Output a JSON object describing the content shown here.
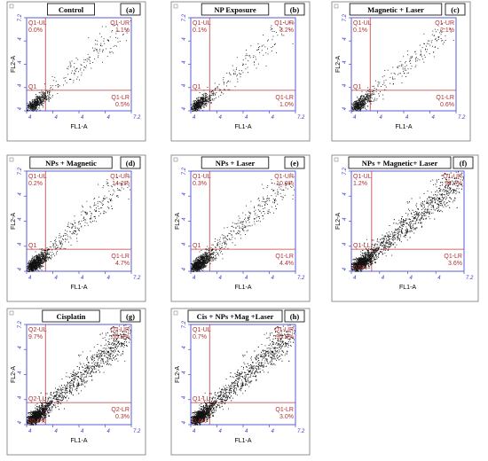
{
  "chart_data": [
    {
      "type": "scatter",
      "title": "Control",
      "panel": "(a)",
      "xlabel": "FL1-A",
      "ylabel": "FL2-A",
      "quadrants": {
        "ul": "Q1-UL",
        "ur": "Q1-UR",
        "ll": "Q1",
        "lr": "Q1-LR"
      },
      "values": {
        "ul": "0.0%",
        "ur": "1.1%",
        "ll": "",
        "lr": "0.5%"
      },
      "density": "low"
    },
    {
      "type": "scatter",
      "title": "NP Exposure",
      "panel": "(b)",
      "xlabel": "FL1-A",
      "ylabel": "",
      "quadrants": {
        "ul": "Q1-UL",
        "ur": "Q1-UR",
        "ll": "Q1",
        "lr": "Q1-LR"
      },
      "values": {
        "ul": "0.1%",
        "ur": "3.2%",
        "ll": "",
        "lr": "1.0%"
      },
      "density": "low"
    },
    {
      "type": "scatter",
      "title": "Magnetic + Laser",
      "panel": "(c)",
      "xlabel": "FL1-A",
      "ylabel": "FL2-A",
      "quadrants": {
        "ul": "Q1-UL",
        "ur": "Q1-UR",
        "ll": "Q1",
        "lr": "Q1-LR"
      },
      "values": {
        "ul": "0.1%",
        "ur": "2.1%",
        "ll": "",
        "lr": "0.6%"
      },
      "density": "low"
    },
    {
      "type": "scatter",
      "title": "NPs + Magnetic",
      "panel": "(d)",
      "xlabel": "FL1-A",
      "ylabel": "FL2-A",
      "quadrants": {
        "ul": "Q1-UL",
        "ur": "Q1-UR",
        "ll": "Q1",
        "lr": "Q1-LR"
      },
      "values": {
        "ul": "0.2%",
        "ur": "14.2%",
        "ll": "",
        "lr": "4.7%"
      },
      "density": "medium"
    },
    {
      "type": "scatter",
      "title": "NPs + Laser",
      "panel": "(e)",
      "xlabel": "FL1-A",
      "ylabel": "FL2-A",
      "quadrants": {
        "ul": "Q1-UL",
        "ur": "Q1-UR",
        "ll": "Q1",
        "lr": "Q1-LR"
      },
      "values": {
        "ul": "0.3%",
        "ur": "10.9%",
        "ll": "",
        "lr": "4.4%"
      },
      "density": "medium"
    },
    {
      "type": "scatter",
      "title": "NPs + Magnetic+ Laser",
      "panel": "(f)",
      "xlabel": "FL1-A",
      "ylabel": "FL2-A",
      "quadrants": {
        "ul": "Q1-UL",
        "ur": "Q1-UR",
        "ll": "Q1-LL",
        "lr": "Q1-LR"
      },
      "values": {
        "ul": "1.2%",
        "ur": "94.7%",
        "ll": "0.5%",
        "lr": "3.6%"
      },
      "density": "high"
    },
    {
      "type": "scatter",
      "title": "Cisplatin",
      "panel": "(g)",
      "xlabel": "FL1-A",
      "ylabel": "FL2-A",
      "quadrants": {
        "ul": "Q2-UL",
        "ur": "Q2-UR",
        "ll": "Q2-LL",
        "lr": "Q2-LR"
      },
      "values": {
        "ul": "9.7%",
        "ur": "55.0%",
        "ll": "35.0%",
        "lr": "0.3%"
      },
      "density": "high"
    },
    {
      "type": "scatter",
      "title": "Cis + NPs +Mag +Laser",
      "panel": "(h)",
      "xlabel": "FL1-A",
      "ylabel": "FL2-A",
      "quadrants": {
        "ul": "Q1-UL",
        "ur": "Q1-UR",
        "ll": "Q1-LL",
        "lr": "Q1-LR"
      },
      "values": {
        "ul": "0.7%",
        "ur": "95.9%",
        "ll": "0.4%",
        "lr": "3.0%"
      },
      "density": "high"
    }
  ],
  "axis": {
    "tick_labels": [
      "4",
      "4",
      "4",
      "4",
      "7.2"
    ]
  },
  "colors": {
    "frame": "#5b5bd6",
    "gate": "#c03a3a",
    "dots": "#111111",
    "text_gate": "#b03030",
    "axis_text": "#3a3acc"
  }
}
